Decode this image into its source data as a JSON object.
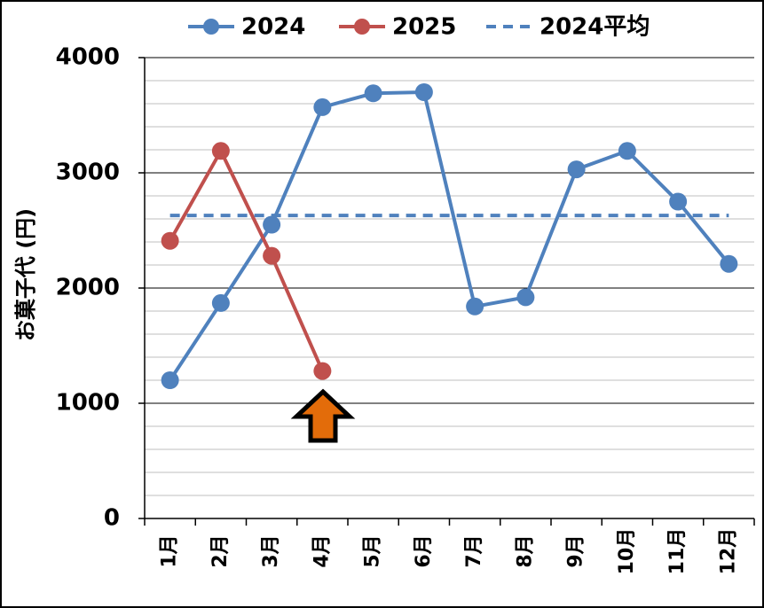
{
  "chart_data": {
    "type": "line",
    "ylabel": "お菓子代 (円)",
    "categories": [
      "1月",
      "2月",
      "3月",
      "4月",
      "5月",
      "6月",
      "7月",
      "8月",
      "9月",
      "10月",
      "11月",
      "12月"
    ],
    "series": [
      {
        "name": "2024",
        "color": "#4f81bd",
        "line_style": "solid",
        "marker": true,
        "values": [
          1200,
          1870,
          2550,
          3570,
          3690,
          3700,
          1840,
          1920,
          3030,
          3190,
          2750,
          2210
        ]
      },
      {
        "name": "2025",
        "color": "#c0504d",
        "line_style": "solid",
        "marker": true,
        "values": [
          2410,
          3190,
          2280,
          1280,
          null,
          null,
          null,
          null,
          null,
          null,
          null,
          null
        ]
      },
      {
        "name": "2024平均",
        "color": "#4f81bd",
        "line_style": "dashed",
        "marker": false,
        "values": [
          2630,
          2630,
          2630,
          2630,
          2630,
          2630,
          2630,
          2630,
          2630,
          2630,
          2630,
          2630
        ]
      }
    ],
    "ylim": [
      0,
      4000
    ],
    "yticks": [
      0,
      1000,
      2000,
      3000,
      4000
    ],
    "minor_yticks": [
      200,
      400,
      600,
      800,
      1200,
      1400,
      1600,
      1800,
      2200,
      2400,
      2600,
      2800,
      3200,
      3400,
      3600,
      3800
    ],
    "grid": true,
    "legend": "top"
  }
}
